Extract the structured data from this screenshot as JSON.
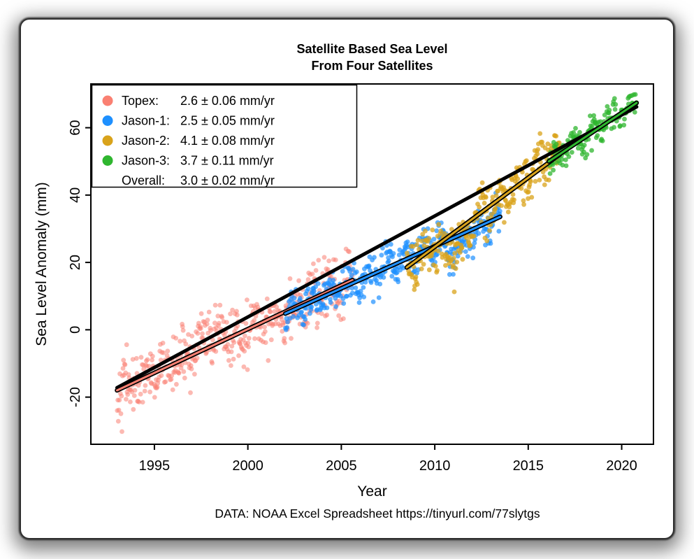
{
  "chart_data": {
    "type": "scatter",
    "title_line1": "Satellite Based Sea Level",
    "title_line2": "From Four Satellites",
    "xlabel": "Year",
    "ylabel": "Sea Level Anomaly (mm)",
    "caption": "DATA: NOAA Excel Spreadsheet https://tinyurl.com/77slytgs",
    "xlim": [
      1991.6,
      2021.7
    ],
    "ylim": [
      -34,
      73
    ],
    "xticks": [
      1995,
      2000,
      2005,
      2010,
      2015,
      2020
    ],
    "yticks": [
      -20,
      0,
      20,
      40,
      60
    ],
    "grid": false,
    "legend_position": "top-left",
    "series": [
      {
        "name": "Topex",
        "color": "#FA8072",
        "point_opacity": 0.55,
        "rate_mm_per_yr": 2.6,
        "rate_uncertainty": 0.06,
        "x_start": 1993.0,
        "x_end": 2005.6,
        "trend_start": -18.0,
        "slope": 2.6,
        "points_per_year": 36,
        "noise_sd": 4.2,
        "seasonal_amp": 2.2,
        "anomalies": [
          {
            "center": 1997.9,
            "width": 0.5,
            "amp": 3.5
          }
        ]
      },
      {
        "name": "Jason-1",
        "color": "#1E90FF",
        "point_opacity": 0.7,
        "rate_mm_per_yr": 2.5,
        "rate_uncertainty": 0.05,
        "x_start": 2002.0,
        "x_end": 2013.5,
        "trend_start": 4.8,
        "slope": 2.5,
        "points_per_year": 36,
        "noise_sd": 2.8,
        "seasonal_amp": 2.0,
        "anomalies": [
          {
            "center": 2011.2,
            "width": 0.45,
            "amp": -5
          }
        ]
      },
      {
        "name": "Jason-2",
        "color": "#D9A31B",
        "point_opacity": 0.75,
        "rate_mm_per_yr": 4.1,
        "rate_uncertainty": 0.08,
        "x_start": 2008.5,
        "x_end": 2016.7,
        "trend_start": 18.5,
        "slope": 4.1,
        "points_per_year": 36,
        "noise_sd": 3.4,
        "seasonal_amp": 2.2,
        "anomalies": [
          {
            "center": 2011.2,
            "width": 0.45,
            "amp": -7
          },
          {
            "center": 2015.9,
            "width": 0.4,
            "amp": 2.5
          }
        ]
      },
      {
        "name": "Jason-3",
        "color": "#2FB62F",
        "point_opacity": 0.75,
        "rate_mm_per_yr": 3.7,
        "rate_uncertainty": 0.11,
        "x_start": 2016.1,
        "x_end": 2020.8,
        "trend_start": 50.0,
        "slope": 3.7,
        "points_per_year": 36,
        "noise_sd": 2.2,
        "seasonal_amp": 1.8,
        "anomalies": []
      }
    ],
    "overall": {
      "name": "Overall",
      "color": "#000000",
      "rate_mm_per_yr": 3.0,
      "rate_uncertainty": 0.02,
      "x_start": 1993.0,
      "x_end": 2020.8,
      "trend_start": -17.2,
      "slope": 3.0
    }
  },
  "legend": {
    "rows": [
      {
        "name": "Topex:",
        "value": "2.6 ± 0.06 mm/yr",
        "color": "#FA8072"
      },
      {
        "name": "Jason-1:",
        "value": "2.5 ± 0.05 mm/yr",
        "color": "#1E90FF"
      },
      {
        "name": "Jason-2:",
        "value": "4.1 ± 0.08 mm/yr",
        "color": "#D9A31B"
      },
      {
        "name": "Jason-3:",
        "value": "3.7 ± 0.11 mm/yr",
        "color": "#2FB62F"
      },
      {
        "name": "Overall:",
        "value": "3.0 ± 0.02 mm/yr",
        "color": null
      }
    ]
  }
}
